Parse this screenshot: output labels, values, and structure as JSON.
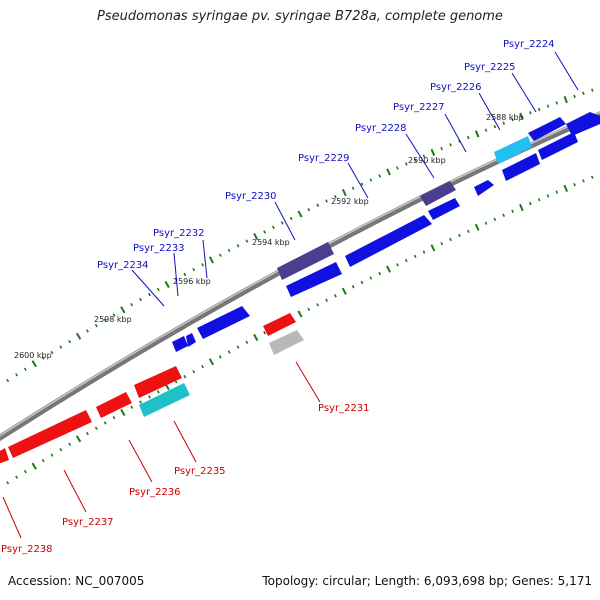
{
  "title": "Pseudomonas syringae pv. syringae B728a, complete genome",
  "footer": {
    "accession": "Accession: NC_007005",
    "topology": "Topology: circular; Length: 6,093,698 bp; Genes: 5,171"
  },
  "scale": {
    "tick_labels": [
      "2588 kbp",
      "2590 kbp",
      "2592 kbp",
      "2594 kbp",
      "2596 kbp",
      "2598 kbp",
      "2600 kbp"
    ]
  },
  "genes": [
    {
      "label": "Psyr_2224",
      "strand": "+",
      "color": "#1010e0"
    },
    {
      "label": "Psyr_2225",
      "strand": "+",
      "color": "#1ebcf0"
    },
    {
      "label": "Psyr_2226",
      "strand": "+",
      "color": "#1010e0"
    },
    {
      "label": "Psyr_2227",
      "strand": "+",
      "color": "#1010e0"
    },
    {
      "label": "Psyr_2228",
      "strand": "+",
      "color": "#4a3f8f"
    },
    {
      "label": "Psyr_2229",
      "strand": "+",
      "color": "#1010e0"
    },
    {
      "label": "Psyr_2230",
      "strand": "+",
      "color": "#4a3f8f"
    },
    {
      "label": "Psyr_2231",
      "strand": "-",
      "color": "#b8b8b8"
    },
    {
      "label": "Psyr_2232",
      "strand": "+",
      "color": "#1010e0"
    },
    {
      "label": "Psyr_2233",
      "strand": "+",
      "color": "#1010e0"
    },
    {
      "label": "Psyr_2234",
      "strand": "+",
      "color": "#1010e0"
    },
    {
      "label": "Psyr_2235",
      "strand": "-",
      "color": "#20c0c8"
    },
    {
      "label": "Psyr_2236",
      "strand": "-",
      "color": "#ee1111"
    },
    {
      "label": "Psyr_2237",
      "strand": "-",
      "color": "#ee1111"
    },
    {
      "label": "Psyr_2238",
      "strand": "-",
      "color": "#ee1111"
    }
  ],
  "colors": {
    "forward_label": "#1010c0",
    "reverse_label": "#cc0000",
    "backbone": "#888888",
    "tick": "#1a7a1a"
  }
}
